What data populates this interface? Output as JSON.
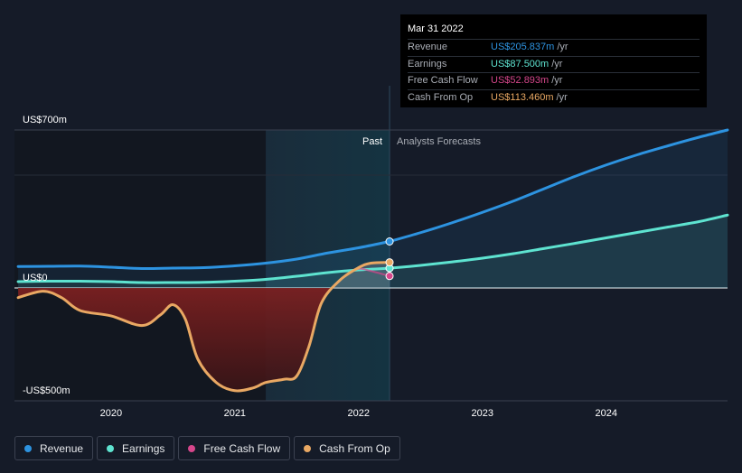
{
  "chart_data": {
    "type": "line",
    "title": "",
    "xlabel": "",
    "ylabel": "",
    "x_ticks": [
      2020,
      2021,
      2022,
      2023,
      2024
    ],
    "y_ticks": [
      {
        "value": 700,
        "label": "US$700m"
      },
      {
        "value": 0,
        "label": "US$0"
      },
      {
        "value": -500,
        "label": "-US$500m"
      }
    ],
    "xlim": [
      2019.22,
      2024.98
    ],
    "ylim": [
      -500,
      700
    ],
    "past_label": "Past",
    "forecast_label": "Analysts Forecasts",
    "forecast_start": 2021.25,
    "current_x": 2022.25,
    "series": [
      {
        "name": "Revenue",
        "color": "#2d93e0",
        "past": [
          [
            2019.25,
            95
          ],
          [
            2019.5,
            96
          ],
          [
            2019.75,
            97
          ],
          [
            2020.0,
            92
          ],
          [
            2020.25,
            86
          ],
          [
            2020.5,
            88
          ],
          [
            2020.75,
            90
          ],
          [
            2021.0,
            98
          ],
          [
            2021.25,
            110
          ],
          [
            2021.5,
            128
          ],
          [
            2021.75,
            155
          ],
          [
            2022.0,
            178
          ],
          [
            2022.25,
            206
          ]
        ],
        "forecast": [
          [
            2022.25,
            206
          ],
          [
            2022.5,
            245
          ],
          [
            2022.75,
            288
          ],
          [
            2023.0,
            335
          ],
          [
            2023.25,
            385
          ],
          [
            2023.5,
            440
          ],
          [
            2023.75,
            495
          ],
          [
            2024.0,
            545
          ],
          [
            2024.25,
            590
          ],
          [
            2024.5,
            630
          ],
          [
            2024.75,
            668
          ],
          [
            2024.98,
            700
          ]
        ]
      },
      {
        "name": "Earnings",
        "color": "#5ee3d0",
        "past": [
          [
            2019.25,
            28
          ],
          [
            2019.5,
            30
          ],
          [
            2019.75,
            30
          ],
          [
            2020.0,
            28
          ],
          [
            2020.25,
            24
          ],
          [
            2020.5,
            24
          ],
          [
            2020.75,
            25
          ],
          [
            2021.0,
            30
          ],
          [
            2021.25,
            38
          ],
          [
            2021.5,
            52
          ],
          [
            2021.75,
            68
          ],
          [
            2022.0,
            80
          ],
          [
            2022.25,
            87.5
          ]
        ],
        "forecast": [
          [
            2022.25,
            87.5
          ],
          [
            2022.5,
            100
          ],
          [
            2022.75,
            115
          ],
          [
            2023.0,
            132
          ],
          [
            2023.25,
            152
          ],
          [
            2023.5,
            175
          ],
          [
            2023.75,
            198
          ],
          [
            2024.0,
            222
          ],
          [
            2024.25,
            246
          ],
          [
            2024.5,
            270
          ],
          [
            2024.75,
            294
          ],
          [
            2024.98,
            323
          ]
        ]
      },
      {
        "name": "Free Cash Flow",
        "color": "#d6468b",
        "past": [
          [
            2021.9,
            60
          ],
          [
            2022.0,
            85
          ],
          [
            2022.1,
            75
          ],
          [
            2022.25,
            52.9
          ]
        ],
        "forecast": []
      },
      {
        "name": "Cash From Op",
        "color": "#e9a863",
        "past": [
          [
            2019.25,
            -45
          ],
          [
            2019.45,
            -15
          ],
          [
            2019.6,
            -45
          ],
          [
            2019.75,
            -105
          ],
          [
            2020.0,
            -130
          ],
          [
            2020.25,
            -175
          ],
          [
            2020.4,
            -125
          ],
          [
            2020.5,
            -78
          ],
          [
            2020.6,
            -145
          ],
          [
            2020.7,
            -330
          ],
          [
            2020.85,
            -440
          ],
          [
            2021.0,
            -478
          ],
          [
            2021.15,
            -465
          ],
          [
            2021.25,
            -440
          ],
          [
            2021.4,
            -425
          ],
          [
            2021.5,
            -410
          ],
          [
            2021.6,
            -270
          ],
          [
            2021.7,
            -70
          ],
          [
            2021.85,
            35
          ],
          [
            2022.0,
            90
          ],
          [
            2022.1,
            110
          ],
          [
            2022.25,
            113.5
          ]
        ],
        "forecast": []
      }
    ]
  },
  "tooltip": {
    "date": "Mar 31 2022",
    "rows": [
      {
        "label": "Revenue",
        "value": "US$205.837m",
        "unit": "/yr",
        "color": "#2d93e0"
      },
      {
        "label": "Earnings",
        "value": "US$87.500m",
        "unit": "/yr",
        "color": "#5ee3d0"
      },
      {
        "label": "Free Cash Flow",
        "value": "US$52.893m",
        "unit": "/yr",
        "color": "#d6468b"
      },
      {
        "label": "Cash From Op",
        "value": "US$113.460m",
        "unit": "/yr",
        "color": "#e9a863"
      }
    ]
  },
  "legend": [
    {
      "label": "Revenue",
      "color": "#2d93e0"
    },
    {
      "label": "Earnings",
      "color": "#5ee3d0"
    },
    {
      "label": "Free Cash Flow",
      "color": "#d6468b"
    },
    {
      "label": "Cash From Op",
      "color": "#e9a863"
    }
  ]
}
